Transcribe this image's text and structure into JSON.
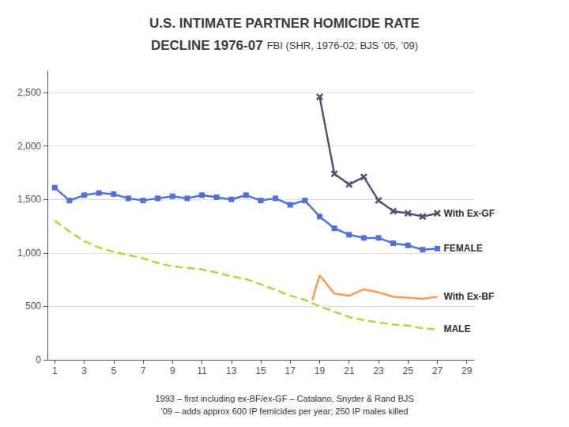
{
  "chart_data": {
    "type": "line",
    "title": [
      "U.S. INTIMATE PARTNER HOMICIDE RATE",
      "DECLINE 1976-07"
    ],
    "subtitle": "FBI (SHR, 1976-02; BJS ’05, ’09)",
    "annotations": [
      "1993 – first including ex-BF/ex-GF – Catalano, Snyder & Rand BJS",
      "'09 – adds approx 600 IP femicides per year; 250 IP males killed"
    ],
    "xlim": [
      0.5,
      29.5
    ],
    "xticks": [
      1,
      3,
      5,
      7,
      9,
      11,
      13,
      15,
      17,
      19,
      21,
      23,
      25,
      27,
      29
    ],
    "ylim": [
      0,
      2700
    ],
    "yticks": [
      0,
      500,
      1000,
      1500,
      2000,
      2500
    ],
    "grid": "y",
    "series": [
      {
        "name": "FEMALE",
        "marker": "square",
        "line_style": "solid",
        "x": [
          1,
          2,
          3,
          4,
          5,
          6,
          7,
          8,
          9,
          10,
          11,
          12,
          13,
          14,
          15,
          16,
          17,
          18,
          19,
          20,
          21,
          22,
          23,
          24,
          25,
          26,
          27
        ],
        "values": [
          1610,
          1490,
          1540,
          1560,
          1550,
          1510,
          1490,
          1510,
          1530,
          1510,
          1540,
          1520,
          1500,
          1540,
          1490,
          1510,
          1450,
          1490,
          1340,
          1230,
          1170,
          1140,
          1140,
          1090,
          1070,
          1030,
          1040
        ]
      },
      {
        "name": "MALE",
        "marker": "none",
        "line_style": "dashed",
        "x": [
          1,
          2,
          3,
          4,
          5,
          6,
          7,
          8,
          9,
          10,
          11,
          12,
          13,
          14,
          15,
          16,
          17,
          18,
          19,
          20,
          21,
          22,
          23,
          24,
          25,
          26,
          27
        ],
        "values": [
          1300,
          1200,
          1110,
          1050,
          1010,
          980,
          950,
          905,
          875,
          860,
          845,
          815,
          780,
          755,
          705,
          655,
          600,
          560,
          500,
          450,
          400,
          370,
          350,
          330,
          320,
          295,
          285
        ]
      },
      {
        "name": "With Ex-GF",
        "marker": "x",
        "line_style": "solid",
        "x": [
          19,
          20,
          21,
          22,
          23,
          24,
          25,
          26,
          27
        ],
        "values": [
          2460,
          1740,
          1640,
          1710,
          1490,
          1390,
          1370,
          1340,
          1370
        ]
      },
      {
        "name": "With Ex-BF",
        "marker": "none",
        "line_style": "solid",
        "x": [
          18.5,
          19.0,
          19,
          20,
          21,
          22,
          23,
          24,
          25,
          26,
          27
        ],
        "values": [
          560,
          790,
          790,
          620,
          600,
          660,
          630,
          590,
          580,
          570,
          590
        ]
      }
    ]
  }
}
